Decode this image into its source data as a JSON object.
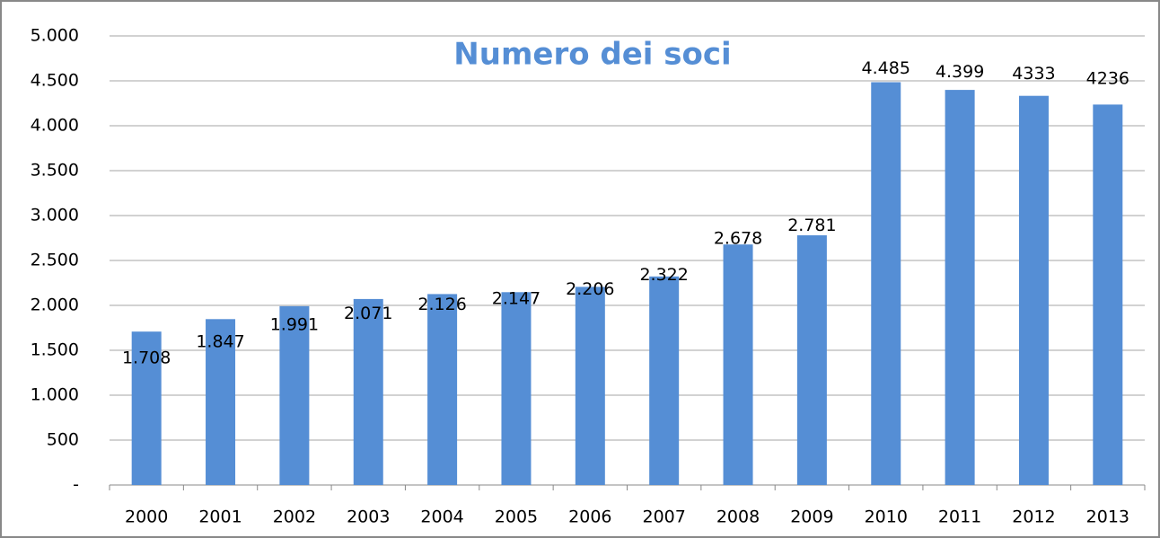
{
  "chart_data": {
    "type": "bar",
    "title": "Numero dei soci",
    "categories": [
      "2000",
      "2001",
      "2002",
      "2003",
      "2004",
      "2005",
      "2006",
      "2007",
      "2008",
      "2009",
      "2010",
      "2011",
      "2012",
      "2013"
    ],
    "values": [
      1708,
      1847,
      1991,
      2071,
      2126,
      2147,
      2206,
      2322,
      2678,
      2781,
      4485,
      4399,
      4333,
      4236
    ],
    "value_labels": [
      "1.708",
      "1.847",
      "1.991",
      "2.071",
      "2.126",
      "2.147",
      "2.206",
      "2.322",
      "2.678",
      "2.781",
      "4.485",
      "4.399",
      "4333",
      "4236"
    ],
    "color": "#558ed5",
    "ylim": [
      0,
      5000
    ],
    "yticks": [
      {
        "value": 0,
        "label": "-"
      },
      500,
      {
        "value": 1000,
        "label": "1.000"
      },
      {
        "value": 1500,
        "label": "1.500"
      },
      {
        "value": 2000,
        "label": "2.000"
      },
      {
        "value": 2500,
        "label": "2.500"
      },
      {
        "value": 3000,
        "label": "3.000"
      },
      {
        "value": 3500,
        "label": "3.500"
      },
      {
        "value": 4000,
        "label": "4.000"
      },
      {
        "value": 4500,
        "label": "4.500"
      },
      {
        "value": 5000,
        "label": "5.000"
      }
    ],
    "grid": true
  }
}
